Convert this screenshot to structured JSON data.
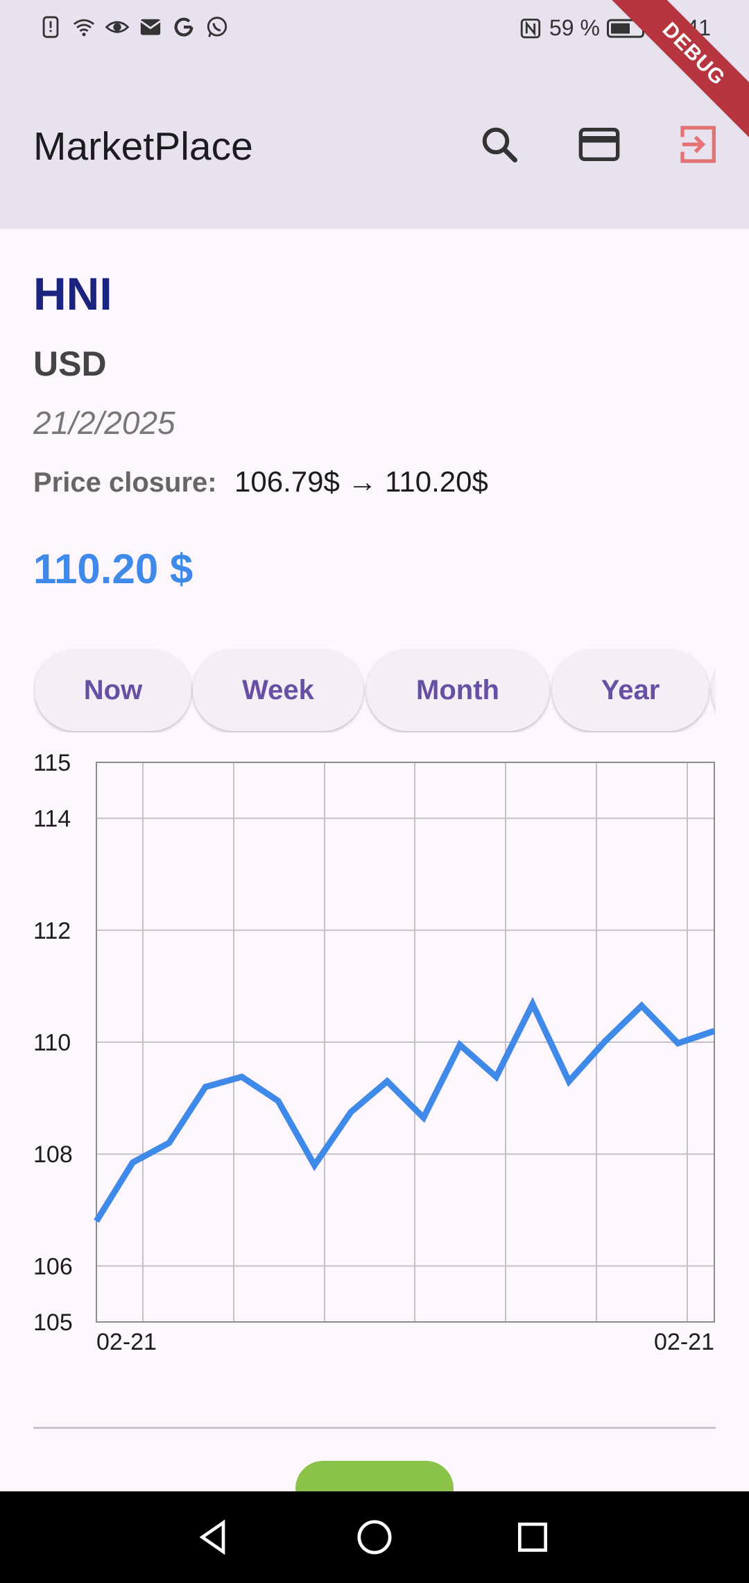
{
  "status_bar": {
    "battery_percent": "59 %",
    "time": "17:41"
  },
  "app_bar": {
    "title": "MarketPlace",
    "icons": [
      "search-icon",
      "credit-card-icon",
      "logout-icon"
    ]
  },
  "debug_label": "DEBUG",
  "stock": {
    "ticker": "HNI",
    "currency": "USD",
    "date": "21/2/2025",
    "closure_label": "Price closure:",
    "closure_value": "106.79$ → 110.20$",
    "current_price": "110.20 $"
  },
  "range_tabs": [
    "Now",
    "Week",
    "Month",
    "Year"
  ],
  "colors": {
    "accent": "#3f8ae8",
    "ticker": "#1a237e",
    "chip_text": "#6750a4",
    "logout": "#e57373",
    "action": "#8bc34a"
  },
  "chart_data": {
    "type": "line",
    "title": "",
    "xlabel": "",
    "ylabel": "",
    "x_tick_labels": [
      "02-21",
      "02-21"
    ],
    "y_ticks": [
      105,
      106,
      108,
      110,
      112,
      114,
      115
    ],
    "ylim": [
      105,
      115
    ],
    "grid": true,
    "series": [
      {
        "values": [
          106.8,
          107.85,
          108.2,
          109.2,
          109.38,
          108.95,
          107.8,
          108.75,
          109.3,
          108.65,
          109.95,
          109.38,
          110.68,
          109.3,
          110.02,
          110.65,
          109.98,
          110.2
        ]
      }
    ]
  }
}
